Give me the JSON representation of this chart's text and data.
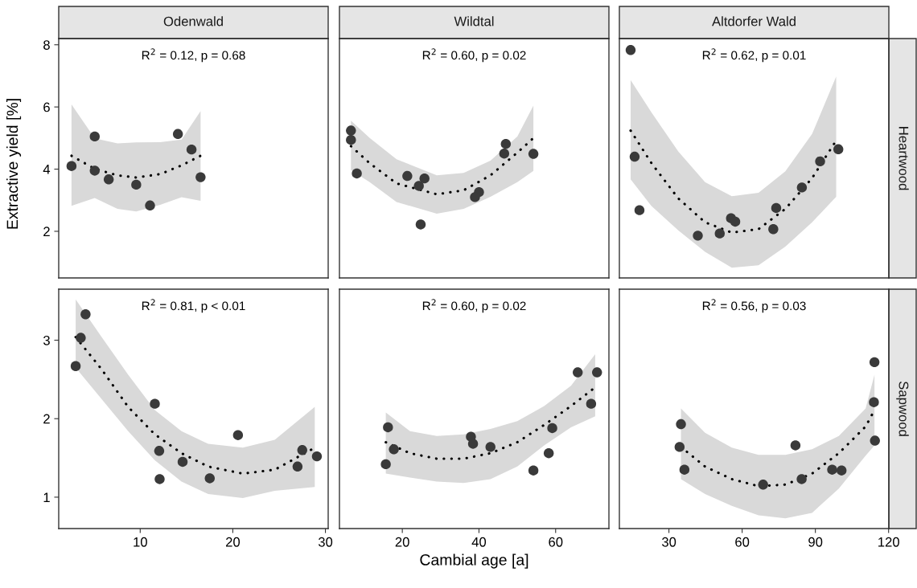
{
  "chart_data": [
    {
      "type": "scatter",
      "title": "Odenwald",
      "ylabel": "Extractive yield [%]",
      "xlim": [
        1.2,
        30.3
      ],
      "ylim": [
        0.5,
        8.2
      ],
      "xticks": [
        10,
        20,
        30
      ],
      "yticks": [
        2,
        4,
        6,
        8
      ],
      "tick_labels": "y",
      "grid": false,
      "annotations": [
        "R$^{2}$ = 0.12, p = 0.68"
      ],
      "series": [
        {
          "marker": "circle",
          "color": "#3a3a3a",
          "x": [
            2.58,
            5.09,
            5.09,
            6.6,
            9.57,
            11.06,
            14.07,
            15.54,
            16.52
          ],
          "values": [
            4.1,
            5.05,
            3.95,
            3.67,
            3.5,
            2.83,
            5.13,
            4.63,
            3.74
          ]
        },
        {
          "type": "line",
          "color": "#000000",
          "line_style": "dotted",
          "x": [
            2.58,
            5.09,
            7.55,
            9.57,
            12.16,
            14.47,
            16.52
          ],
          "values": [
            4.43,
            4.01,
            3.8,
            3.73,
            3.84,
            4.12,
            4.43
          ],
          "lower": [
            2.82,
            3.07,
            2.72,
            2.64,
            2.85,
            3.1,
            2.98
          ],
          "upper": [
            6.08,
            4.99,
            4.83,
            4.86,
            4.87,
            4.95,
            5.87
          ]
        }
      ]
    },
    {
      "type": "scatter",
      "title": "Wildtal",
      "xlim": [
        3.6,
        73.9
      ],
      "ylim": [
        0.5,
        8.2
      ],
      "xticks": [
        20,
        40,
        60
      ],
      "yticks": [
        2,
        4,
        6,
        8
      ],
      "tick_labels": false,
      "grid": false,
      "annotations": [
        "R$^{2}$ = 0.60, p = 0.02"
      ],
      "series": [
        {
          "marker": "circle",
          "color": "#3a3a3a",
          "x": [
            6.6,
            6.6,
            8.13,
            21.3,
            25.78,
            24.31,
            24.79,
            40.0,
            38.95,
            47.0,
            46.58,
            54.2
          ],
          "values": [
            5.24,
            4.94,
            3.86,
            3.78,
            3.7,
            3.46,
            2.22,
            3.26,
            3.1,
            4.81,
            4.5,
            4.49
          ]
        },
        {
          "type": "line",
          "color": "#000000",
          "line_style": "dotted",
          "x": [
            6.6,
            11.49,
            18.49,
            28.99,
            36.0,
            43.0,
            50.0,
            54.2
          ],
          "values": [
            4.74,
            4.19,
            3.54,
            3.19,
            3.32,
            3.8,
            4.53,
            5.0
          ],
          "lower": [
            3.97,
            3.58,
            2.94,
            2.57,
            2.72,
            3.11,
            3.58,
            3.94
          ],
          "upper": [
            5.56,
            5.0,
            4.32,
            3.8,
            3.88,
            4.27,
            5.05,
            6.04
          ]
        }
      ]
    },
    {
      "type": "scatter",
      "title": "Altdorfer Wald",
      "y2label": "Heartwood",
      "xlim": [
        9.7,
        120.1
      ],
      "ylim": [
        0.5,
        8.2
      ],
      "xticks": [
        30,
        60,
        90,
        120
      ],
      "yticks": [
        2,
        4,
        6,
        8
      ],
      "tick_labels": false,
      "grid": false,
      "annotations": [
        "R$^{2}$ = 0.62, p = 0.01"
      ],
      "series": [
        {
          "marker": "circle",
          "color": "#3a3a3a",
          "x": [
            14.31,
            15.95,
            17.93,
            41.84,
            50.82,
            55.43,
            57.17,
            72.76,
            73.95,
            84.47,
            91.94,
            99.41
          ],
          "values": [
            7.83,
            4.4,
            2.68,
            1.86,
            1.93,
            2.42,
            2.31,
            2.07,
            2.75,
            3.41,
            4.25,
            4.64
          ]
        },
        {
          "type": "line",
          "color": "#000000",
          "line_style": "dotted",
          "x": [
            14.31,
            22.86,
            33.82,
            44.8,
            55.76,
            66.71,
            77.7,
            88.65,
            98.52
          ],
          "values": [
            5.24,
            4.19,
            3.06,
            2.29,
            1.96,
            2.07,
            2.72,
            3.71,
            4.92
          ],
          "lower": [
            3.67,
            2.81,
            2.03,
            1.34,
            0.83,
            0.91,
            1.51,
            2.29,
            3.11
          ],
          "upper": [
            6.86,
            5.82,
            4.57,
            3.58,
            3.13,
            3.24,
            3.93,
            5.13,
            6.98
          ]
        }
      ]
    },
    {
      "type": "scatter",
      "xlim": [
        1.2,
        30.3
      ],
      "ylim": [
        0.6,
        3.65
      ],
      "xticks": [
        10,
        20,
        30
      ],
      "yticks": [
        1,
        2,
        3
      ],
      "grid": false,
      "annotations": [
        "R$^{2}$ = 0.81, p < 0.01"
      ],
      "series": [
        {
          "marker": "circle",
          "color": "#3a3a3a",
          "x": [
            3.03,
            3.58,
            4.1,
            11.58,
            12.05,
            12.1,
            14.58,
            17.51,
            20.56,
            26.99,
            27.5,
            29.08
          ],
          "values": [
            2.67,
            3.03,
            3.33,
            2.19,
            1.59,
            1.23,
            1.45,
            1.24,
            1.79,
            1.39,
            1.6,
            1.52
          ]
        },
        {
          "type": "line",
          "color": "#000000",
          "line_style": "dotted",
          "x": [
            3.03,
            5.83,
            8.7,
            11.58,
            14.46,
            17.34,
            21.08,
            24.53,
            28.85
          ],
          "values": [
            3.04,
            2.63,
            2.15,
            1.8,
            1.56,
            1.39,
            1.3,
            1.35,
            1.63
          ],
          "lower": [
            2.65,
            2.25,
            1.84,
            1.47,
            1.2,
            1.04,
            0.99,
            1.08,
            1.13
          ],
          "upper": [
            3.52,
            3.04,
            2.56,
            2.11,
            1.84,
            1.68,
            1.63,
            1.73,
            2.15
          ]
        }
      ]
    },
    {
      "type": "scatter",
      "xlabel": "Cambial age [a]",
      "xlim": [
        3.6,
        73.9
      ],
      "ylim": [
        0.6,
        3.65
      ],
      "xticks": [
        20,
        40,
        60
      ],
      "yticks": [
        1,
        2,
        3
      ],
      "tick_labels": "x",
      "grid": false,
      "annotations": [
        "R$^{2}$ = 0.60, p = 0.02"
      ],
      "series": [
        {
          "marker": "circle",
          "color": "#3a3a3a",
          "x": [
            15.69,
            16.26,
            17.79,
            37.9,
            38.45,
            43.0,
            54.2,
            58.2,
            59.12,
            65.76,
            69.26,
            70.8
          ],
          "values": [
            1.42,
            1.89,
            1.61,
            1.77,
            1.68,
            1.64,
            1.34,
            1.56,
            1.88,
            2.59,
            2.19,
            2.59
          ]
        },
        {
          "type": "line",
          "color": "#000000",
          "line_style": "dotted",
          "x": [
            15.69,
            22.0,
            29.0,
            36.0,
            43.0,
            50.0,
            57.0,
            64.0,
            70.32
          ],
          "values": [
            1.7,
            1.56,
            1.49,
            1.49,
            1.56,
            1.7,
            1.92,
            2.16,
            2.4
          ],
          "lower": [
            1.3,
            1.25,
            1.2,
            1.18,
            1.23,
            1.39,
            1.66,
            1.89,
            2.03
          ],
          "upper": [
            2.08,
            1.84,
            1.78,
            1.8,
            1.87,
            1.97,
            2.16,
            2.42,
            2.82
          ]
        }
      ]
    },
    {
      "type": "scatter",
      "y2label": "Sapwood",
      "xlim": [
        9.7,
        120.1
      ],
      "ylim": [
        0.6,
        3.65
      ],
      "xticks": [
        30,
        60,
        90,
        120
      ],
      "yticks": [
        1,
        2,
        3
      ],
      "tick_labels": "x",
      "grid": false,
      "annotations": [
        "R$^{2}$ = 0.56, p = 0.03"
      ],
      "series": [
        {
          "marker": "circle",
          "color": "#3a3a3a",
          "x": [
            34.93,
            34.37,
            36.35,
            68.59,
            81.84,
            84.38,
            96.88,
            100.72,
            114.21,
            113.98,
            114.41
          ],
          "values": [
            1.93,
            1.64,
            1.35,
            1.16,
            1.66,
            1.23,
            1.35,
            1.34,
            2.72,
            2.21,
            1.72
          ]
        },
        {
          "type": "line",
          "color": "#000000",
          "line_style": "dotted",
          "x": [
            34.93,
            44.8,
            55.76,
            66.71,
            77.7,
            88.65,
            99.61,
            110.59,
            114.21
          ],
          "values": [
            1.64,
            1.39,
            1.23,
            1.14,
            1.16,
            1.3,
            1.56,
            1.9,
            2.11
          ],
          "lower": [
            1.23,
            1.04,
            0.89,
            0.77,
            0.73,
            0.8,
            1.11,
            1.53,
            1.66
          ],
          "upper": [
            2.13,
            1.82,
            1.63,
            1.54,
            1.54,
            1.61,
            1.78,
            2.13,
            2.56
          ]
        }
      ]
    }
  ]
}
